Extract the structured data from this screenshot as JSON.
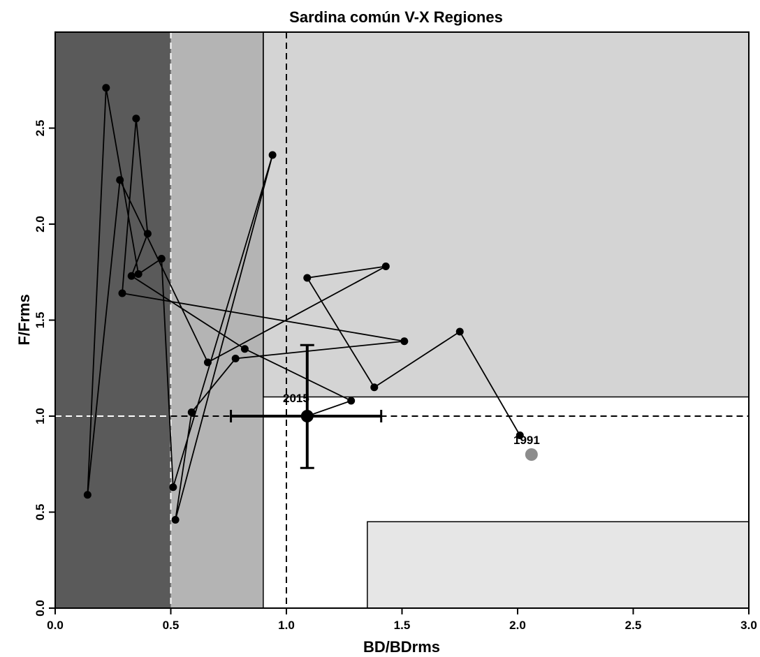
{
  "chart_data": {
    "type": "scatter",
    "title": "Sardina común V-X Regiones",
    "xlabel": "BD/BDrms",
    "ylabel": "F/Frms",
    "xlim": [
      0,
      3
    ],
    "ylim": [
      0,
      3
    ],
    "x_ticks": [
      "0.0",
      "0.5",
      "1.0",
      "1.5",
      "2.0",
      "2.5",
      "3.0"
    ],
    "y_ticks": [
      "0.0",
      "0.5",
      "1.0",
      "1.5",
      "2.0",
      "2.5"
    ],
    "grid": false,
    "zones": [
      {
        "x": [
          0,
          0.5
        ],
        "y": [
          0,
          3
        ],
        "color": "#5a5a5a"
      },
      {
        "x": [
          0.5,
          0.9
        ],
        "y": [
          0,
          3
        ],
        "color": "#b4b4b4"
      },
      {
        "x": [
          0.9,
          3
        ],
        "y": [
          1.1,
          3
        ],
        "color": "#d4d4d4"
      },
      {
        "x": [
          1.35,
          3
        ],
        "y": [
          0,
          0.45
        ],
        "color": "#e6e6e6"
      }
    ],
    "reference_lines": {
      "vertical": [
        0.5,
        1.0
      ],
      "horizontal": [
        1.0
      ]
    },
    "series": [
      {
        "values": [
          {
            "x": 2.01,
            "y": 0.9
          },
          {
            "x": 1.75,
            "y": 1.44
          },
          {
            "x": 1.38,
            "y": 1.15
          },
          {
            "x": 1.09,
            "y": 1.72
          },
          {
            "x": 1.43,
            "y": 1.78
          },
          {
            "x": 0.66,
            "y": 1.28
          },
          {
            "x": 0.28,
            "y": 2.23
          },
          {
            "x": 0.14,
            "y": 0.59
          },
          {
            "x": 0.22,
            "y": 2.71
          },
          {
            "x": 0.36,
            "y": 1.74
          },
          {
            "x": 0.46,
            "y": 1.82
          },
          {
            "x": 0.51,
            "y": 0.63
          },
          {
            "x": 0.94,
            "y": 2.36
          },
          {
            "x": 0.52,
            "y": 0.46
          },
          {
            "x": 0.59,
            "y": 1.02
          },
          {
            "x": 0.78,
            "y": 1.3
          },
          {
            "x": 1.51,
            "y": 1.39
          },
          {
            "x": 0.29,
            "y": 1.64
          },
          {
            "x": 0.35,
            "y": 2.55
          },
          {
            "x": 0.4,
            "y": 1.95
          },
          {
            "x": 0.33,
            "y": 1.73
          },
          {
            "x": 0.82,
            "y": 1.35
          },
          {
            "x": 1.28,
            "y": 1.08
          },
          {
            "x": 1.09,
            "y": 1.0
          }
        ]
      }
    ],
    "start_point": {
      "x": 2.06,
      "y": 0.8,
      "label": "1991",
      "color": "#8c8c8c"
    },
    "end_point": {
      "x": 1.09,
      "y": 1.0,
      "label": "2015"
    },
    "error_bars": {
      "x": 1.09,
      "y": 1.0,
      "xmin": 0.76,
      "xmax": 1.41,
      "ymin": 0.73,
      "ymax": 1.37
    }
  }
}
